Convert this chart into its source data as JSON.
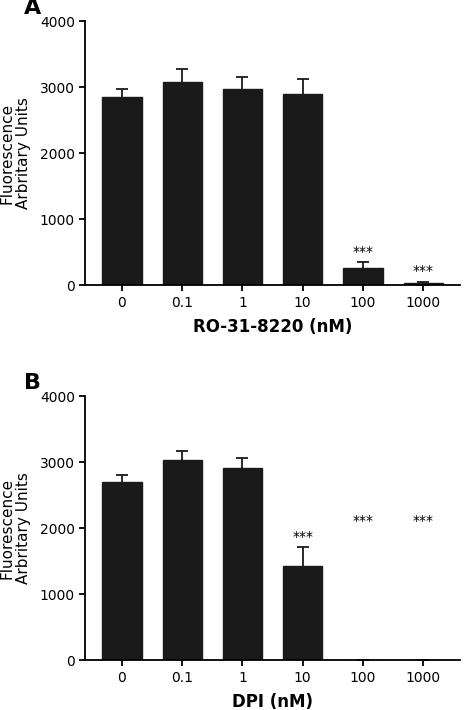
{
  "panel_A": {
    "categories": [
      "0",
      "0.1",
      "1",
      "10",
      "100",
      "1000"
    ],
    "values": [
      2850,
      3080,
      2980,
      2900,
      260,
      30
    ],
    "errors": [
      120,
      200,
      170,
      220,
      90,
      20
    ],
    "significant": [
      false,
      false,
      false,
      false,
      true,
      true
    ],
    "sig_y_override": [
      null,
      null,
      null,
      null,
      null,
      null
    ],
    "xlabel": "RO-31-8220 (nM)",
    "panel_label": "A"
  },
  "panel_B": {
    "categories": [
      "0",
      "0.1",
      "1",
      "10",
      "100",
      "1000"
    ],
    "values": [
      2700,
      3040,
      2920,
      1430,
      0,
      0
    ],
    "errors": [
      110,
      130,
      140,
      280,
      0,
      0
    ],
    "significant": [
      false,
      false,
      false,
      true,
      true,
      true
    ],
    "sig_y_override": [
      null,
      null,
      null,
      null,
      2000,
      2000
    ],
    "xlabel": "DPI (nM)",
    "panel_label": "B"
  },
  "ylabel": "Fluorescence\nArbritary Units",
  "ylim": [
    0,
    4000
  ],
  "yticks": [
    0,
    1000,
    2000,
    3000,
    4000
  ],
  "bar_color": "#1a1a1a",
  "bar_width": 0.65,
  "sig_marker": "***",
  "sig_fontsize": 10,
  "ylabel_fontsize": 11,
  "xlabel_fontsize": 12,
  "tick_fontsize": 10,
  "panel_label_fontsize": 16,
  "background_color": "#ffffff",
  "ecolor": "#1a1a1a",
  "capsize": 4
}
